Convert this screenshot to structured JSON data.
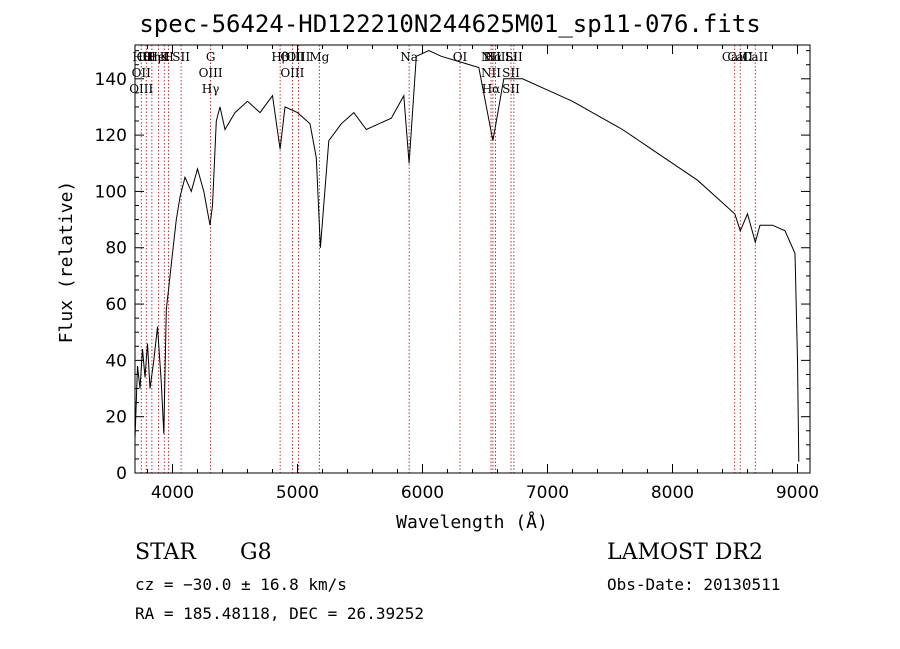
{
  "chart_data": {
    "type": "line",
    "title": "spec-56424-HD122210N244625M01_sp11-076.fits",
    "xlabel": "Wavelength (Å)",
    "ylabel": "Flux (relative)",
    "xlim": [
      3700,
      9100
    ],
    "ylim": [
      0,
      152
    ],
    "xticks": [
      4000,
      5000,
      6000,
      7000,
      8000,
      9000
    ],
    "yticks": [
      0,
      20,
      40,
      60,
      80,
      100,
      120,
      140
    ],
    "grid": false,
    "series": [
      {
        "values": [
          [
            3700,
            12
          ],
          [
            3720,
            38
          ],
          [
            3740,
            30
          ],
          [
            3760,
            44
          ],
          [
            3780,
            34
          ],
          [
            3800,
            46
          ],
          [
            3820,
            30
          ],
          [
            3850,
            40
          ],
          [
            3880,
            52
          ],
          [
            3910,
            32
          ],
          [
            3930,
            14
          ],
          [
            3950,
            58
          ],
          [
            3970,
            66
          ],
          [
            4000,
            78
          ],
          [
            4030,
            90
          ],
          [
            4060,
            98
          ],
          [
            4100,
            105
          ],
          [
            4150,
            100
          ],
          [
            4200,
            108
          ],
          [
            4250,
            100
          ],
          [
            4300,
            88
          ],
          [
            4320,
            95
          ],
          [
            4350,
            125
          ],
          [
            4380,
            130
          ],
          [
            4420,
            122
          ],
          [
            4500,
            128
          ],
          [
            4600,
            132
          ],
          [
            4700,
            128
          ],
          [
            4800,
            134
          ],
          [
            4861,
            115
          ],
          [
            4900,
            130
          ],
          [
            5000,
            128
          ],
          [
            5100,
            124
          ],
          [
            5150,
            112
          ],
          [
            5183,
            80
          ],
          [
            5250,
            118
          ],
          [
            5350,
            124
          ],
          [
            5450,
            128
          ],
          [
            5550,
            122
          ],
          [
            5650,
            124
          ],
          [
            5750,
            126
          ],
          [
            5850,
            134
          ],
          [
            5893,
            110
          ],
          [
            5950,
            148
          ],
          [
            6050,
            150
          ],
          [
            6150,
            148
          ],
          [
            6300,
            146
          ],
          [
            6450,
            144
          ],
          [
            6563,
            118
          ],
          [
            6650,
            140
          ],
          [
            6800,
            140
          ],
          [
            7000,
            136
          ],
          [
            7200,
            132
          ],
          [
            7400,
            127
          ],
          [
            7600,
            122
          ],
          [
            7800,
            116
          ],
          [
            8000,
            110
          ],
          [
            8200,
            104
          ],
          [
            8400,
            96
          ],
          [
            8498,
            92
          ],
          [
            8542,
            86
          ],
          [
            8600,
            92
          ],
          [
            8662,
            82
          ],
          [
            8700,
            88
          ],
          [
            8800,
            88
          ],
          [
            8900,
            86
          ],
          [
            8980,
            78
          ],
          [
            9000,
            40
          ],
          [
            9010,
            4
          ]
        ]
      }
    ],
    "lines": [
      {
        "labels": [
          "Hθ",
          "OII",
          "OIII"
        ],
        "x": 3750
      },
      {
        "labels": [
          "OII"
        ],
        "x": 3790
      },
      {
        "labels": [
          "Hη"
        ],
        "x": 3835
      },
      {
        "labels": [
          "HeI"
        ],
        "x": 3889
      },
      {
        "labels": [
          "K"
        ],
        "x": 3934
      },
      {
        "labels": [
          "H"
        ],
        "x": 3969
      },
      {
        "labels": [
          "SII"
        ],
        "x": 4069
      },
      {
        "labels": [
          "G",
          "OIII",
          "Hγ"
        ],
        "x": 4305
      },
      {
        "labels": [
          "Hβ"
        ],
        "x": 4861
      },
      {
        "labels": [
          "OIII",
          "OIII"
        ],
        "x": 4959
      },
      {
        "labels": [
          "OIII"
        ],
        "x": 5007
      },
      {
        "labels": [
          "Mg"
        ],
        "x": 5175
      },
      {
        "labels": [
          "Na"
        ],
        "x": 5893
      },
      {
        "labels": [
          "OI"
        ],
        "x": 6300
      },
      {
        "labels": [
          "NII",
          "NII",
          "Hα"
        ],
        "x": 6548
      },
      {
        "labels": [
          "Hα"
        ],
        "x": 6563
      },
      {
        "labels": [
          "NII"
        ],
        "x": 6584
      },
      {
        "labels": [
          "Li",
          "SII",
          "SII"
        ],
        "x": 6708
      },
      {
        "labels": [
          "SII"
        ],
        "x": 6731
      },
      {
        "labels": [
          "CaII"
        ],
        "x": 8498
      },
      {
        "labels": [
          "CaII"
        ],
        "x": 8542
      },
      {
        "labels": [
          "CaII"
        ],
        "x": 8662
      }
    ],
    "colors": {
      "spectrum": "#000000",
      "line_markers": "#b00000",
      "axes": "#000000"
    }
  },
  "info": {
    "object_class": "STAR",
    "subclass": "G8",
    "survey": "LAMOST DR2",
    "redshift_text": "cz = −30.0 ± 16.8 km/s",
    "obs_date": "Obs-Date: 20130511",
    "coords": "RA = 185.48118, DEC =  26.39252"
  }
}
